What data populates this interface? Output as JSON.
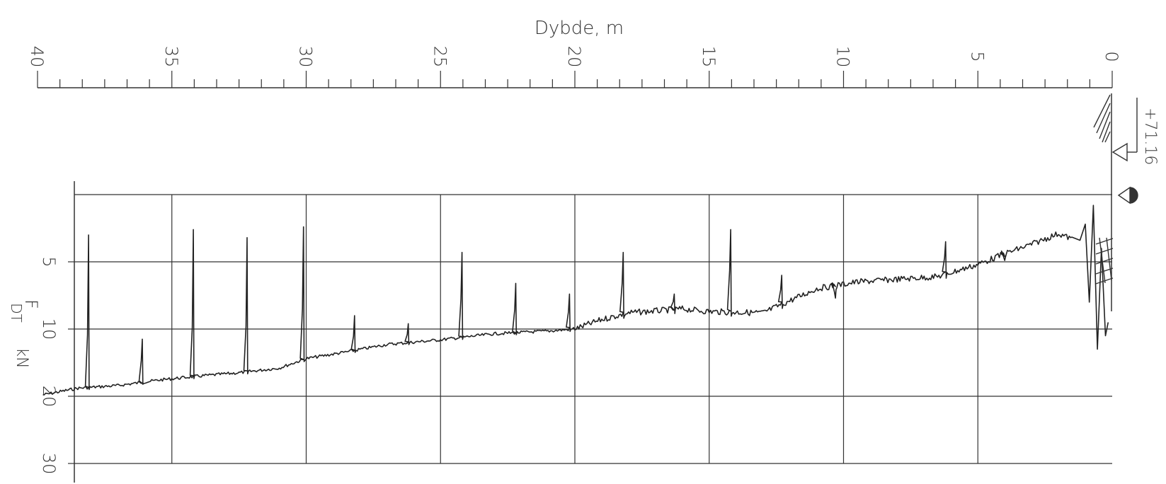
{
  "chart_data": {
    "type": "line",
    "xlabel": "Dybde, m",
    "ylabel_main": "F",
    "ylabel_sub": "DT",
    "ylabel_unit": "kN",
    "xlim": [
      40,
      0
    ],
    "x_ticks": [
      "40",
      "35",
      "30",
      "25",
      "20",
      "15",
      "10",
      "5",
      "0"
    ],
    "y_ticks": [
      "5",
      "10",
      "20",
      "30"
    ],
    "elevation_label": "+71.16",
    "grid": true,
    "series": [
      {
        "baseline": [
          [
            39.8,
            19.8
          ],
          [
            38.5,
            18.8
          ],
          [
            37,
            18.4
          ],
          [
            35.5,
            17.6
          ],
          [
            34,
            17.0
          ],
          [
            32.5,
            16.5
          ],
          [
            31,
            15.8
          ],
          [
            30,
            14.4
          ],
          [
            28.5,
            13.4
          ],
          [
            27,
            12.3
          ],
          [
            25,
            11.6
          ],
          [
            23,
            10.7
          ],
          [
            21,
            10.3
          ],
          [
            20,
            10.0
          ],
          [
            19,
            9.3
          ],
          [
            18,
            8.8
          ],
          [
            16,
            8.5
          ],
          [
            15,
            8.7
          ],
          [
            13,
            8.8
          ],
          [
            12,
            7.9
          ],
          [
            11,
            7.0
          ],
          [
            9.5,
            6.5
          ],
          [
            8,
            6.3
          ],
          [
            6.5,
            6.1
          ],
          [
            5,
            5.2
          ],
          [
            4,
            4.4
          ],
          [
            3,
            3.7
          ],
          [
            2,
            2.9
          ],
          [
            1.5,
            3.3
          ]
        ],
        "peaks": [
          [
            38.1,
            3.0
          ],
          [
            36.1,
            11.5
          ],
          [
            34.2,
            2.6
          ],
          [
            32.2,
            3.2
          ],
          [
            30.1,
            2.4
          ],
          [
            28.2,
            9.0
          ],
          [
            26.2,
            9.6
          ],
          [
            24.2,
            4.3
          ],
          [
            22.2,
            6.6
          ],
          [
            20.2,
            7.4
          ],
          [
            18.2,
            4.3
          ],
          [
            16.3,
            7.4
          ],
          [
            14.2,
            2.6
          ],
          [
            12.3,
            6.0
          ],
          [
            10.3,
            7.7
          ],
          [
            6.2,
            3.5
          ],
          [
            4.0,
            4.9
          ],
          [
            1.2,
            5.5
          ],
          [
            0.4,
            5.0
          ]
        ]
      }
    ]
  }
}
